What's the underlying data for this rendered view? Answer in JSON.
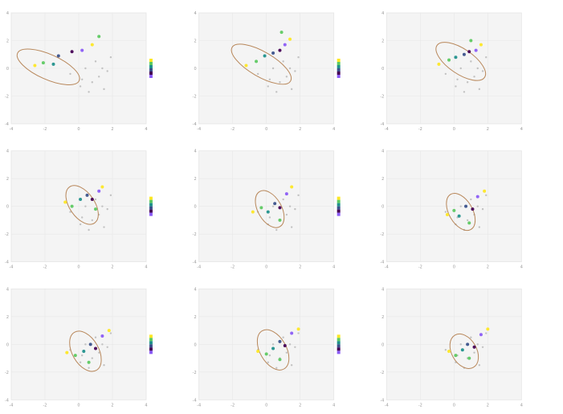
{
  "chart_data": {
    "type": "scatter",
    "layout_grid": [
      3,
      3
    ],
    "xlim": [
      -4,
      4
    ],
    "ylim": [
      -4,
      4
    ],
    "grid": true,
    "legend_placement": "right",
    "background_color": "#f4f4f4",
    "gray_color": "#bdbdbd",
    "ellipse_color": "#b8875a",
    "color_scale": [
      "#fde725",
      "#5ec962",
      "#21918c",
      "#3b528b",
      "#440154",
      "#8b5cf6"
    ],
    "panels": [
      {
        "title": "",
        "x_ticks": [
          -4,
          -2,
          0,
          2,
          4
        ],
        "y_ticks": [
          -4,
          -2,
          0,
          2,
          4
        ],
        "ellipse": {
          "cx": -1.8,
          "cy": 0.1,
          "rx": 2.0,
          "ry": 0.9,
          "angle": 24
        },
        "series": [
          {
            "name": "",
            "color": "#22a884",
            "values": [
              [
                -2.6,
                0.2
              ],
              [
                -2.1,
                0.4
              ],
              [
                -1.5,
                0.3
              ],
              [
                -1.2,
                0.9
              ],
              [
                -0.4,
                1.2
              ],
              [
                0.2,
                1.3
              ],
              [
                0.8,
                1.7
              ],
              [
                1.2,
                2.3
              ]
            ]
          }
        ],
        "gray": [
          [
            -0.5,
            -0.4
          ],
          [
            0.2,
            -0.8
          ],
          [
            0.8,
            -1.0
          ],
          [
            1.2,
            -0.6
          ],
          [
            1.5,
            -1.5
          ],
          [
            0.4,
            0.0
          ],
          [
            1.0,
            0.5
          ],
          [
            1.7,
            -0.2
          ],
          [
            0.6,
            -1.7
          ],
          [
            1.9,
            0.8
          ],
          [
            0.1,
            -1.3
          ],
          [
            1.4,
            0.0
          ]
        ]
      },
      {
        "title": "",
        "x_ticks": [
          -4,
          -2,
          0,
          2,
          4
        ],
        "y_ticks": [
          -4,
          -2,
          0,
          2,
          4
        ],
        "ellipse": {
          "cx": -0.3,
          "cy": 0.3,
          "rx": 2.0,
          "ry": 0.9,
          "angle": 30
        },
        "series": [
          {
            "name": "",
            "color": "#22a884",
            "values": [
              [
                -1.2,
                0.2
              ],
              [
                -0.6,
                0.5
              ],
              [
                -0.1,
                0.9
              ],
              [
                0.4,
                1.1
              ],
              [
                0.8,
                1.3
              ],
              [
                1.1,
                1.7
              ],
              [
                1.4,
                2.1
              ],
              [
                0.9,
                2.6
              ]
            ]
          }
        ],
        "gray": [
          [
            -0.5,
            -0.4
          ],
          [
            0.2,
            -0.8
          ],
          [
            0.8,
            -1.0
          ],
          [
            1.2,
            -0.6
          ],
          [
            1.5,
            -1.5
          ],
          [
            0.4,
            0.0
          ],
          [
            1.0,
            0.5
          ],
          [
            1.7,
            -0.2
          ],
          [
            0.6,
            -1.7
          ],
          [
            1.9,
            0.8
          ],
          [
            0.1,
            -1.3
          ],
          [
            1.4,
            0.0
          ]
        ]
      },
      {
        "title": "",
        "x_ticks": [
          -4,
          -2,
          0,
          2,
          4
        ],
        "y_ticks": [
          -4,
          -2,
          0,
          2,
          4
        ],
        "ellipse": {
          "cx": 0.4,
          "cy": 0.5,
          "rx": 1.7,
          "ry": 0.9,
          "angle": 34
        },
        "series": [
          {
            "name": "",
            "color": "#22a884",
            "values": [
              [
                -0.9,
                0.3
              ],
              [
                -0.3,
                0.6
              ],
              [
                0.1,
                0.8
              ],
              [
                0.6,
                1.0
              ],
              [
                0.9,
                1.2
              ],
              [
                1.3,
                1.3
              ],
              [
                1.6,
                1.7
              ],
              [
                1.0,
                2.0
              ]
            ]
          }
        ],
        "gray": [
          [
            -0.5,
            -0.4
          ],
          [
            0.2,
            -0.8
          ],
          [
            0.8,
            -1.0
          ],
          [
            1.2,
            -0.6
          ],
          [
            1.5,
            -1.5
          ],
          [
            0.4,
            0.0
          ],
          [
            1.0,
            0.5
          ],
          [
            1.7,
            -0.2
          ],
          [
            0.6,
            -1.7
          ],
          [
            1.9,
            0.8
          ],
          [
            0.1,
            -1.3
          ],
          [
            1.4,
            0.0
          ]
        ]
      },
      {
        "title": "",
        "x_ticks": [
          -4,
          -2,
          0,
          2,
          4
        ],
        "y_ticks": [
          -4,
          -2,
          0,
          2,
          4
        ],
        "ellipse": {
          "cx": 0.2,
          "cy": 0.1,
          "rx": 1.3,
          "ry": 0.9,
          "angle": 55
        },
        "series": [
          {
            "name": "",
            "color": "#22a884",
            "values": [
              [
                -0.8,
                0.3
              ],
              [
                -0.4,
                0.0
              ],
              [
                0.1,
                0.5
              ],
              [
                0.5,
                0.8
              ],
              [
                0.8,
                0.5
              ],
              [
                1.2,
                1.1
              ],
              [
                1.4,
                1.4
              ],
              [
                1.0,
                -0.2
              ]
            ]
          }
        ],
        "gray": [
          [
            -0.5,
            -0.4
          ],
          [
            0.2,
            -0.8
          ],
          [
            0.8,
            -1.0
          ],
          [
            1.2,
            -0.6
          ],
          [
            1.5,
            -1.5
          ],
          [
            0.4,
            0.0
          ],
          [
            1.0,
            0.5
          ],
          [
            1.7,
            -0.2
          ],
          [
            0.6,
            -1.7
          ],
          [
            1.9,
            0.8
          ],
          [
            0.1,
            -1.3
          ],
          [
            1.4,
            0.0
          ]
        ]
      },
      {
        "title": "",
        "x_ticks": [
          -4,
          -2,
          0,
          2,
          4
        ],
        "y_ticks": [
          -4,
          -2,
          0,
          2,
          4
        ],
        "ellipse": {
          "cx": 0.2,
          "cy": -0.2,
          "rx": 1.2,
          "ry": 0.85,
          "angle": 60
        },
        "series": [
          {
            "name": "",
            "color": "#22a884",
            "values": [
              [
                -0.8,
                -0.4
              ],
              [
                -0.3,
                -0.1
              ],
              [
                0.1,
                -0.4
              ],
              [
                0.5,
                0.2
              ],
              [
                0.8,
                -0.1
              ],
              [
                1.2,
                0.9
              ],
              [
                1.5,
                1.4
              ],
              [
                0.8,
                -1.0
              ]
            ]
          }
        ],
        "gray": [
          [
            -0.5,
            -0.4
          ],
          [
            0.2,
            -0.8
          ],
          [
            0.8,
            -1.0
          ],
          [
            1.2,
            -0.6
          ],
          [
            1.5,
            -1.5
          ],
          [
            0.4,
            0.0
          ],
          [
            1.0,
            0.5
          ],
          [
            1.7,
            -0.2
          ],
          [
            0.6,
            -1.7
          ],
          [
            1.9,
            0.8
          ],
          [
            0.1,
            -1.3
          ],
          [
            1.4,
            0.0
          ]
        ]
      },
      {
        "title": "",
        "x_ticks": [
          -4,
          -2,
          0,
          2,
          4
        ],
        "y_ticks": [
          -4,
          -2,
          0,
          2,
          4
        ],
        "ellipse": {
          "cx": 0.4,
          "cy": -0.4,
          "rx": 1.2,
          "ry": 0.85,
          "angle": 60
        },
        "series": [
          {
            "name": "",
            "color": "#22a884",
            "values": [
              [
                -0.4,
                -0.6
              ],
              [
                0.0,
                -0.3
              ],
              [
                0.3,
                -0.7
              ],
              [
                0.7,
                0.0
              ],
              [
                1.1,
                -0.2
              ],
              [
                1.4,
                0.7
              ],
              [
                1.8,
                1.1
              ],
              [
                0.9,
                -1.2
              ]
            ]
          }
        ],
        "gray": [
          [
            -0.5,
            -0.4
          ],
          [
            0.2,
            -0.8
          ],
          [
            0.8,
            -1.0
          ],
          [
            1.2,
            -0.6
          ],
          [
            1.5,
            -1.5
          ],
          [
            0.4,
            0.0
          ],
          [
            1.0,
            0.5
          ],
          [
            1.7,
            -0.2
          ],
          [
            0.6,
            -1.7
          ],
          [
            1.9,
            0.8
          ],
          [
            0.1,
            -1.3
          ],
          [
            1.4,
            0.0
          ]
        ]
      },
      {
        "title": "",
        "x_ticks": [
          -4,
          -2,
          0,
          2,
          4
        ],
        "y_ticks": [
          -4,
          -2,
          0,
          2,
          4
        ],
        "ellipse": {
          "cx": 0.4,
          "cy": -0.5,
          "rx": 1.3,
          "ry": 0.95,
          "angle": 60
        },
        "series": [
          {
            "name": "",
            "color": "#22a884",
            "values": [
              [
                -0.7,
                -0.6
              ],
              [
                -0.2,
                -0.8
              ],
              [
                0.3,
                -0.5
              ],
              [
                0.7,
                0.0
              ],
              [
                1.0,
                -0.3
              ],
              [
                1.4,
                0.6
              ],
              [
                1.8,
                1.0
              ],
              [
                0.6,
                -1.3
              ]
            ]
          }
        ],
        "gray": [
          [
            -0.5,
            -0.4
          ],
          [
            0.2,
            -0.8
          ],
          [
            0.8,
            -1.0
          ],
          [
            1.2,
            -0.6
          ],
          [
            1.5,
            -1.5
          ],
          [
            0.4,
            0.0
          ],
          [
            1.0,
            0.5
          ],
          [
            1.7,
            -0.2
          ],
          [
            0.6,
            -1.7
          ],
          [
            1.9,
            0.8
          ],
          [
            0.1,
            -1.3
          ],
          [
            1.4,
            0.0
          ]
        ]
      },
      {
        "title": "",
        "x_ticks": [
          -4,
          -2,
          0,
          2,
          4
        ],
        "y_ticks": [
          -4,
          -2,
          0,
          2,
          4
        ],
        "ellipse": {
          "cx": 0.4,
          "cy": -0.4,
          "rx": 1.3,
          "ry": 0.95,
          "angle": 60
        },
        "series": [
          {
            "name": "",
            "color": "#22a884",
            "values": [
              [
                -0.5,
                -0.5
              ],
              [
                0.0,
                -0.7
              ],
              [
                0.4,
                -0.3
              ],
              [
                0.8,
                0.2
              ],
              [
                1.1,
                -0.1
              ],
              [
                1.5,
                0.8
              ],
              [
                1.9,
                1.1
              ],
              [
                0.8,
                -1.1
              ]
            ]
          }
        ],
        "gray": [
          [
            -0.5,
            -0.4
          ],
          [
            0.2,
            -0.8
          ],
          [
            0.8,
            -1.0
          ],
          [
            1.2,
            -0.6
          ],
          [
            1.5,
            -1.5
          ],
          [
            0.4,
            0.0
          ],
          [
            1.0,
            0.5
          ],
          [
            1.7,
            -0.2
          ],
          [
            0.6,
            -1.7
          ],
          [
            1.9,
            0.8
          ],
          [
            0.1,
            -1.3
          ],
          [
            1.4,
            0.0
          ]
        ]
      },
      {
        "title": "",
        "x_ticks": [
          -4,
          -2,
          0,
          2,
          4
        ],
        "y_ticks": [
          -4,
          -2,
          0,
          2,
          4
        ],
        "ellipse": {
          "cx": 0.6,
          "cy": -0.5,
          "rx": 1.1,
          "ry": 0.9,
          "angle": 60
        },
        "series": [
          {
            "name": "",
            "color": "#22a884",
            "values": [
              [
                -0.3,
                -0.5
              ],
              [
                0.1,
                -0.8
              ],
              [
                0.5,
                -0.4
              ],
              [
                0.8,
                0.0
              ],
              [
                1.2,
                -0.2
              ],
              [
                1.6,
                0.7
              ],
              [
                2.0,
                1.1
              ],
              [
                0.9,
                -1.0
              ]
            ]
          }
        ],
        "gray": [
          [
            -0.5,
            -0.4
          ],
          [
            0.2,
            -0.8
          ],
          [
            0.8,
            -1.0
          ],
          [
            1.2,
            -0.6
          ],
          [
            1.5,
            -1.5
          ],
          [
            0.4,
            0.0
          ],
          [
            1.0,
            0.5
          ],
          [
            1.7,
            -0.2
          ],
          [
            0.6,
            -1.7
          ],
          [
            1.9,
            0.8
          ],
          [
            0.1,
            -1.3
          ],
          [
            1.4,
            0.0
          ]
        ]
      }
    ]
  }
}
